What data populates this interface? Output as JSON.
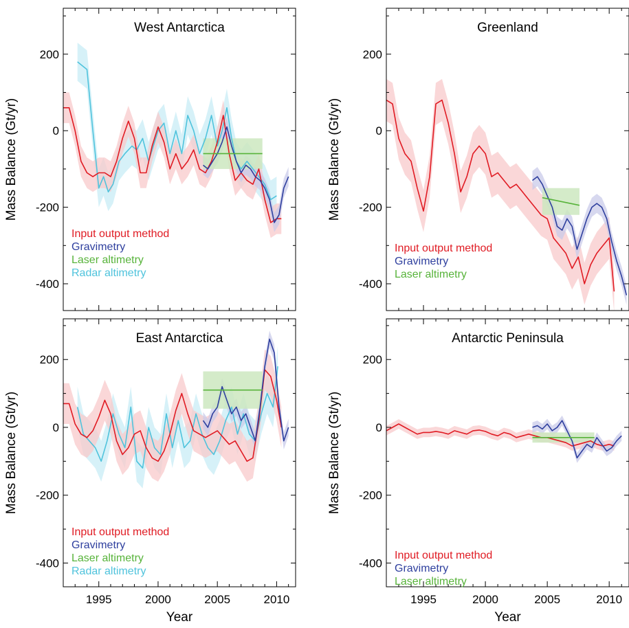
{
  "figure": {
    "common_xlabel": "Year",
    "common_ylabel": "Mass Balance (Gt/yr)"
  },
  "colors": {
    "iom": "#e01b23",
    "iom_band": "#f8c9cb",
    "grav": "#2e3f9e",
    "grav_band": "#c9cbea",
    "laser": "#57b33a",
    "laser_band": "#cde8c0",
    "radar": "#4fc3dc",
    "radar_band": "#c8ecf5"
  },
  "chart_data": [
    {
      "type": "line",
      "title": "West Antarctica",
      "xlabel": "",
      "ylabel": "Mass Balance (Gt/yr)",
      "xlim": [
        1992,
        2011.6
      ],
      "ylim": [
        -470,
        320
      ],
      "xticks": [
        1995,
        2000,
        2005,
        2010
      ],
      "yticks": [
        200,
        0,
        -200,
        -400
      ],
      "legend": [
        "Input output method",
        "Gravimetry",
        "Laser altimetry",
        "Radar altimetry"
      ],
      "series": [
        {
          "name": "Radar altimetry",
          "key": "radar",
          "band": 50,
          "x": [
            1993.2,
            1994.0,
            1994.5,
            1995.0,
            1995.4,
            1995.8,
            1996.2,
            1996.7,
            1997.2,
            1997.8,
            1998.2,
            1998.7,
            1999.2,
            1999.6,
            2000.0,
            2000.5,
            2001.0,
            2001.5,
            2002.0,
            2002.5,
            2003.0,
            2003.5,
            2004.0,
            2004.5,
            2005.0,
            2005.4,
            2005.8,
            2006.2,
            2006.6,
            2007.0,
            2007.5,
            2008.0,
            2008.5,
            2009.0,
            2009.5,
            2010.0
          ],
          "y": [
            180,
            160,
            0,
            -150,
            -120,
            -160,
            -140,
            -80,
            -60,
            -40,
            -50,
            -20,
            -80,
            -40,
            0,
            20,
            -60,
            0,
            -60,
            40,
            0,
            -60,
            -20,
            40,
            -40,
            0,
            60,
            -20,
            -80,
            -100,
            -80,
            -100,
            -120,
            -140,
            -180,
            -170
          ]
        },
        {
          "name": "Input output method",
          "key": "iom",
          "band": 40,
          "x": [
            1992.0,
            1992.5,
            1993.0,
            1993.5,
            1994.0,
            1994.5,
            1995.0,
            1995.5,
            1996.0,
            1996.5,
            1997.0,
            1997.5,
            1998.0,
            1998.5,
            1999.0,
            1999.5,
            2000.0,
            2000.5,
            2001.0,
            2001.5,
            2002.0,
            2002.5,
            2003.0,
            2003.5,
            2004.0,
            2004.5,
            2005.0,
            2005.5,
            2006.0,
            2006.5,
            2007.0,
            2007.5,
            2008.0,
            2008.5,
            2009.0,
            2009.5,
            2010.0,
            2010.4
          ],
          "y": [
            60,
            60,
            0,
            -80,
            -110,
            -120,
            -110,
            -110,
            -120,
            -80,
            -20,
            25,
            -20,
            -110,
            -110,
            -40,
            10,
            -30,
            -100,
            -60,
            -100,
            -80,
            -50,
            -100,
            -110,
            -80,
            -30,
            40,
            -60,
            -130,
            -110,
            -130,
            -140,
            -100,
            -180,
            -240,
            -230,
            -230
          ]
        },
        {
          "name": "Gravimetry",
          "key": "grav",
          "band": 25,
          "x": [
            2003.8,
            2004.2,
            2004.6,
            2005.0,
            2005.4,
            2005.8,
            2006.2,
            2006.6,
            2007.0,
            2007.4,
            2007.8,
            2008.2,
            2008.6,
            2009.0,
            2009.4,
            2009.8,
            2010.2,
            2010.6,
            2011.0
          ],
          "y": [
            -90,
            -100,
            -80,
            -60,
            -30,
            10,
            -40,
            -80,
            -110,
            -90,
            -100,
            -120,
            -130,
            -150,
            -180,
            -240,
            -220,
            -150,
            -120
          ]
        },
        {
          "name": "Laser altimetry",
          "key": "laser",
          "band": 40,
          "x": [
            2003.8,
            2008.8
          ],
          "y": [
            -60,
            -60
          ]
        }
      ]
    },
    {
      "type": "line",
      "title": "Greenland",
      "xlabel": "",
      "ylabel": "Mass Balance (Gt/yr)",
      "xlim": [
        1992,
        2011.6
      ],
      "ylim": [
        -470,
        320
      ],
      "xticks": [
        1995,
        2000,
        2005,
        2010
      ],
      "yticks": [
        200,
        0,
        -200,
        -400
      ],
      "legend": [
        "Input output method",
        "Gravimetry",
        "Laser altimetry"
      ],
      "series": [
        {
          "name": "Input output method",
          "key": "iom",
          "band": 55,
          "x": [
            1992.0,
            1992.5,
            1993.0,
            1993.5,
            1994.0,
            1994.5,
            1995.0,
            1995.5,
            1996.0,
            1996.5,
            1997.0,
            1997.5,
            1998.0,
            1998.5,
            1999.0,
            1999.5,
            2000.0,
            2000.5,
            2001.0,
            2001.5,
            2002.0,
            2002.5,
            2003.0,
            2003.5,
            2004.0,
            2004.5,
            2005.0,
            2005.5,
            2006.0,
            2006.5,
            2007.0,
            2007.5,
            2008.0,
            2008.5,
            2009.0,
            2009.5,
            2010.0,
            2010.4
          ],
          "y": [
            80,
            70,
            -20,
            -60,
            -80,
            -150,
            -210,
            -120,
            70,
            80,
            20,
            -60,
            -160,
            -120,
            -60,
            -40,
            -60,
            -120,
            -110,
            -130,
            -150,
            -140,
            -160,
            -180,
            -200,
            -220,
            -230,
            -280,
            -300,
            -320,
            -360,
            -330,
            -400,
            -350,
            -320,
            -300,
            -280,
            -420
          ]
        },
        {
          "name": "Gravimetry",
          "key": "grav",
          "band": 25,
          "x": [
            2003.8,
            2004.2,
            2004.6,
            2005.0,
            2005.4,
            2005.8,
            2006.2,
            2006.6,
            2007.0,
            2007.4,
            2007.8,
            2008.2,
            2008.6,
            2009.0,
            2009.4,
            2009.8,
            2010.2,
            2010.6,
            2011.0,
            2011.4
          ],
          "y": [
            -130,
            -120,
            -140,
            -170,
            -200,
            -250,
            -260,
            -230,
            -250,
            -310,
            -270,
            -230,
            -200,
            -190,
            -200,
            -230,
            -290,
            -340,
            -380,
            -430
          ]
        },
        {
          "name": "Laser altimetry",
          "key": "laser",
          "band": 25,
          "x": [
            2004.6,
            2007.6
          ],
          "y": [
            -175,
            -195
          ]
        }
      ]
    },
    {
      "type": "line",
      "title": "East Antarctica",
      "xlabel": "Year",
      "ylabel": "Mass Balance (Gt/yr)",
      "xlim": [
        1992,
        2011.6
      ],
      "ylim": [
        -470,
        320
      ],
      "xticks": [
        1995,
        2000,
        2005,
        2010
      ],
      "yticks": [
        200,
        0,
        -200,
        -400
      ],
      "legend": [
        "Input output method",
        "Gravimetry",
        "Laser altimetry",
        "Radar altimetry"
      ],
      "series": [
        {
          "name": "Radar altimetry",
          "key": "radar",
          "band": 60,
          "x": [
            1993.2,
            1993.7,
            1994.2,
            1994.7,
            1995.2,
            1995.7,
            1996.2,
            1996.7,
            1997.2,
            1997.7,
            1998.2,
            1998.7,
            1999.2,
            1999.7,
            2000.2,
            2000.7,
            2001.2,
            2001.7,
            2002.2,
            2002.7,
            2003.2,
            2003.7,
            2004.2,
            2004.7,
            2005.2,
            2005.7,
            2006.2,
            2006.7,
            2007.2,
            2007.7,
            2008.2,
            2008.7,
            2009.2,
            2009.7,
            2010.1
          ],
          "y": [
            60,
            -20,
            -40,
            -60,
            -100,
            -40,
            40,
            -20,
            -60,
            60,
            -100,
            -120,
            0,
            -60,
            -80,
            40,
            -60,
            20,
            -60,
            -40,
            40,
            -20,
            -60,
            -80,
            -40,
            20,
            60,
            -20,
            40,
            -20,
            -40,
            40,
            100,
            60,
            180
          ]
        },
        {
          "name": "Input output method",
          "key": "iom",
          "band": 60,
          "x": [
            1992.0,
            1992.5,
            1993.0,
            1993.5,
            1994.0,
            1994.5,
            1995.0,
            1995.5,
            1996.0,
            1996.5,
            1997.0,
            1997.5,
            1998.0,
            1998.5,
            1999.0,
            1999.5,
            2000.0,
            2000.5,
            2001.0,
            2001.5,
            2002.0,
            2002.5,
            2003.0,
            2003.5,
            2004.0,
            2004.5,
            2005.0,
            2005.5,
            2006.0,
            2006.5,
            2007.0,
            2007.5,
            2008.0,
            2008.5,
            2009.0,
            2009.5,
            2010.0,
            2010.4
          ],
          "y": [
            70,
            70,
            10,
            -20,
            -30,
            -10,
            30,
            80,
            40,
            -40,
            -80,
            -60,
            -20,
            -10,
            -60,
            -90,
            -100,
            -70,
            -20,
            50,
            100,
            40,
            -10,
            -20,
            -30,
            -20,
            -10,
            -30,
            -50,
            -40,
            -70,
            -100,
            -90,
            20,
            170,
            150,
            80,
            0
          ]
        },
        {
          "name": "Gravimetry",
          "key": "grav",
          "band": 25,
          "x": [
            2003.8,
            2004.2,
            2004.6,
            2005.0,
            2005.4,
            2005.8,
            2006.2,
            2006.6,
            2007.0,
            2007.4,
            2007.8,
            2008.2,
            2008.6,
            2009.0,
            2009.4,
            2009.8,
            2010.2,
            2010.6,
            2011.0
          ],
          "y": [
            20,
            0,
            40,
            60,
            120,
            80,
            40,
            60,
            20,
            40,
            0,
            -40,
            60,
            180,
            260,
            220,
            60,
            -40,
            0
          ]
        },
        {
          "name": "Laser altimetry",
          "key": "laser",
          "band": 55,
          "x": [
            2003.8,
            2008.8
          ],
          "y": [
            110,
            110
          ]
        }
      ]
    },
    {
      "type": "line",
      "title": "Antarctic Peninsula",
      "xlabel": "Year",
      "ylabel": "Mass Balance (Gt/yr)",
      "xlim": [
        1992,
        2011.6
      ],
      "ylim": [
        -470,
        320
      ],
      "xticks": [
        1995,
        2000,
        2005,
        2010
      ],
      "yticks": [
        200,
        0,
        -200,
        -400
      ],
      "legend": [
        "Input output method",
        "Gravimetry",
        "Laser altimetry"
      ],
      "series": [
        {
          "name": "Input output method",
          "key": "iom",
          "band": 14,
          "x": [
            1992.0,
            1992.5,
            1993.0,
            1993.5,
            1994.0,
            1994.5,
            1995.0,
            1995.5,
            1996.0,
            1996.5,
            1997.0,
            1997.5,
            1998.0,
            1998.5,
            1999.0,
            1999.5,
            2000.0,
            2000.5,
            2001.0,
            2001.5,
            2002.0,
            2002.5,
            2003.0,
            2003.5,
            2004.0,
            2004.5,
            2005.0,
            2005.5,
            2006.0,
            2006.5,
            2007.0,
            2007.5,
            2008.0,
            2008.5,
            2009.0,
            2009.5,
            2010.0,
            2010.4
          ],
          "y": [
            -10,
            0,
            10,
            0,
            -10,
            -20,
            -15,
            -15,
            -12,
            -15,
            -20,
            -10,
            -15,
            -20,
            -10,
            -8,
            -12,
            -20,
            -25,
            -15,
            -20,
            -30,
            -25,
            -20,
            -25,
            -30,
            -30,
            -35,
            -40,
            -45,
            -55,
            -50,
            -45,
            -40,
            -50,
            -55,
            -50,
            -55
          ]
        },
        {
          "name": "Gravimetry",
          "key": "grav",
          "band": 15,
          "x": [
            2003.8,
            2004.2,
            2004.6,
            2005.0,
            2005.4,
            2005.8,
            2006.2,
            2006.6,
            2007.0,
            2007.4,
            2007.8,
            2008.2,
            2008.6,
            2009.0,
            2009.4,
            2009.8,
            2010.2,
            2010.6,
            2011.0
          ],
          "y": [
            0,
            5,
            -5,
            10,
            -10,
            0,
            20,
            -10,
            -40,
            -90,
            -70,
            -50,
            -60,
            -30,
            -50,
            -70,
            -60,
            -40,
            -25
          ]
        },
        {
          "name": "Laser altimetry",
          "key": "laser",
          "band": 15,
          "x": [
            2003.8,
            2008.8
          ],
          "y": [
            -30,
            -30
          ]
        }
      ]
    }
  ]
}
